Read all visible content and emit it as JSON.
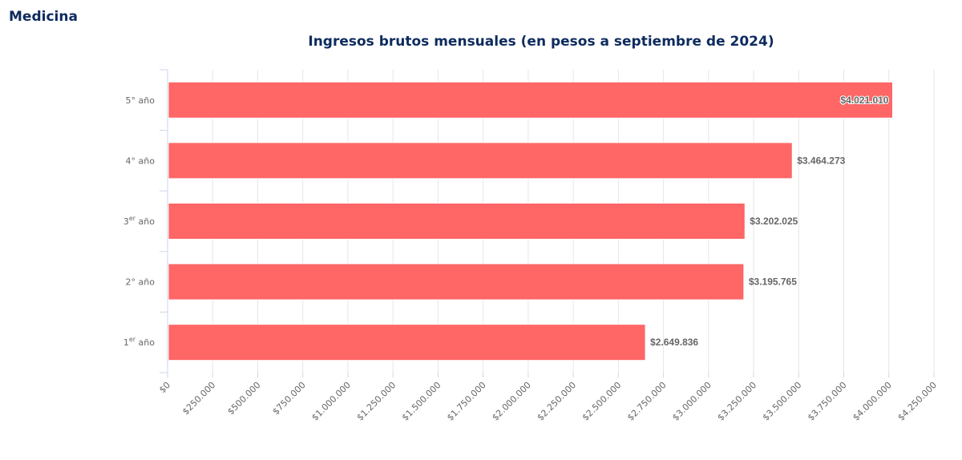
{
  "section": {
    "title": "Medicina"
  },
  "chart_data": {
    "type": "bar",
    "orientation": "horizontal",
    "title": "Ingresos brutos mensuales (en pesos a septiembre de 2024)",
    "categories": [
      {
        "base": "5°",
        "sup": "",
        "rest": " año"
      },
      {
        "base": "4°",
        "sup": "",
        "rest": " año"
      },
      {
        "base": "3",
        "sup": "er",
        "rest": " año"
      },
      {
        "base": "2°",
        "sup": "",
        "rest": " año"
      },
      {
        "base": "1",
        "sup": "er",
        "rest": " año"
      }
    ],
    "values": [
      4021010,
      3464273,
      3202025,
      3195765,
      2649836
    ],
    "data_labels": [
      "$4.021.010",
      "$3.464.273",
      "$3.202.025",
      "$3.195.765",
      "$2.649.836"
    ],
    "xlim": [
      0,
      4250000
    ],
    "x_ticks": [
      0,
      250000,
      500000,
      750000,
      1000000,
      1250000,
      1500000,
      1750000,
      2000000,
      2250000,
      2500000,
      2750000,
      3000000,
      3250000,
      3500000,
      3750000,
      4000000,
      4250000
    ],
    "x_tick_labels": [
      "$0",
      "$250.000",
      "$500.000",
      "$750.000",
      "$1.000.000",
      "$1.250.000",
      "$1.500.000",
      "$1.750.000",
      "$2.000.000",
      "$2.250.000",
      "$2.500.000",
      "$2.750.000",
      "$3.000.000",
      "$3.250.000",
      "$3.500.000",
      "$3.750.000",
      "$4.000.000",
      "$4.250.000"
    ],
    "grid": true,
    "legend": "none",
    "bar_color": "#ff6666"
  }
}
